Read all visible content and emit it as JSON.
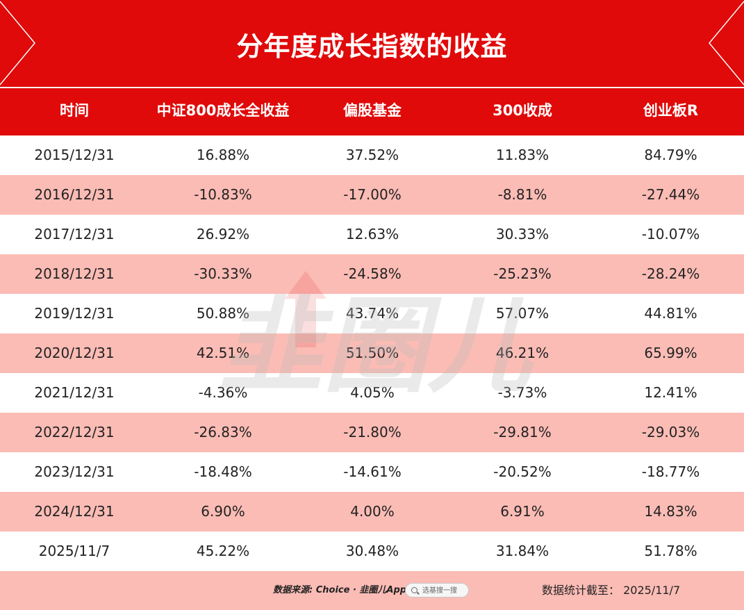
{
  "title": "分年度成长指数的收益",
  "columns": [
    "时间",
    "中证800成长全收益",
    "偏股基金",
    "300收成",
    "创业板R"
  ],
  "rows": [
    [
      "2015/12/31",
      "16.88%",
      "37.52%",
      "11.83%",
      "84.79%"
    ],
    [
      "2016/12/31",
      "-10.83%",
      "-17.00%",
      "-8.81%",
      "-27.44%"
    ],
    [
      "2017/12/31",
      "26.92%",
      "12.63%",
      "30.33%",
      "-10.07%"
    ],
    [
      "2018/12/31",
      "-30.33%",
      "-24.58%",
      "-25.23%",
      "-28.24%"
    ],
    [
      "2019/12/31",
      "50.88%",
      "43.74%",
      "57.07%",
      "44.81%"
    ],
    [
      "2020/12/31",
      "42.51%",
      "51.50%",
      "46.21%",
      "65.99%"
    ],
    [
      "2021/12/31",
      "-4.36%",
      "4.05%",
      "-3.73%",
      "12.41%"
    ],
    [
      "2022/12/31",
      "-26.83%",
      "-21.80%",
      "-29.81%",
      "-29.03%"
    ],
    [
      "2023/12/31",
      "-18.48%",
      "-14.61%",
      "-20.52%",
      "-18.77%"
    ],
    [
      "2024/12/31",
      "6.90%",
      "4.00%",
      "6.91%",
      "14.83%"
    ],
    [
      "2025/11/7",
      "45.22%",
      "30.48%",
      "31.84%",
      "51.78%"
    ]
  ],
  "footer": {
    "source": "数据来源: Choice · 韭圈儿App",
    "search_label": "选基搜一搜",
    "date_note": "数据统计截至： 2025/11/7"
  },
  "colors": {
    "header_red": "#e00a0a",
    "stripe_pink": "#fbbcb5",
    "row_white": "#ffffff"
  },
  "watermark_text": "韭圈儿"
}
